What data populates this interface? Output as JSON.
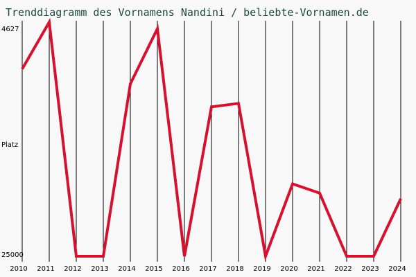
{
  "chart_data": {
    "type": "line",
    "title": "Trenddiagramm des Vornamens Nandini / beliebte-Vornamen.de",
    "ylabel": "Platz",
    "y_axis_labels": {
      "top": "4627",
      "bottom": "25000"
    },
    "y_reversed": true,
    "ylim": [
      4627,
      25000
    ],
    "grid": "vertical",
    "colors": {
      "line": "#d6112f",
      "background": "#f8f8f8",
      "title": "#1b4a3e"
    },
    "x": [
      "2010",
      "2011",
      "2012",
      "2013",
      "2014",
      "2015",
      "2016",
      "2017",
      "2018",
      "2019",
      "2020",
      "2021",
      "2022",
      "2023",
      "2024"
    ],
    "series": [
      {
        "values": [
          8700,
          4627,
          25000,
          25000,
          10000,
          5200,
          25000,
          12000,
          11700,
          25000,
          18700,
          19500,
          25000,
          25000,
          20000
        ]
      }
    ]
  }
}
